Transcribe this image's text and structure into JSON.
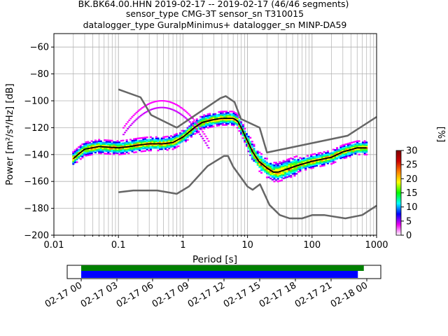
{
  "title_lines": [
    "BK.BK64.00.HHN   2019-02-17 -- 2019-02-17  (46/46 segments)",
    "sensor_type CMG-3T sensor_sn T310015",
    "datalogger_type GuralpMinimus+ datalogger_sn MINP-DA59"
  ],
  "chart_data": {
    "type": "heatmap",
    "xlabel": "Period [s]",
    "ylabel": "Power [m²/s⁴/Hz] [dB]",
    "xscale": "log",
    "xlim": [
      0.01,
      1000
    ],
    "ylim": [
      -200,
      -50
    ],
    "grid": true,
    "x_ticks": [
      0.01,
      0.1,
      1,
      10,
      100,
      1000
    ],
    "x_tick_labels": [
      "0.01",
      "0.1",
      "1",
      "10",
      "100",
      "1000"
    ],
    "y_ticks": [
      -60,
      -80,
      -100,
      -120,
      -140,
      -160,
      -180,
      -200
    ],
    "y_tick_labels": [
      "−60",
      "−80",
      "−100",
      "−120",
      "−140",
      "−160",
      "−180",
      "−200"
    ],
    "series": [
      {
        "role": "new_high_noise_model",
        "color": "#666666",
        "x": [
          0.1,
          0.22,
          0.32,
          0.8,
          3.8,
          4.6,
          6.3,
          7.9,
          15.4,
          20,
          354.8,
          1000
        ],
        "y": [
          -91.5,
          -97.4,
          -110.5,
          -120,
          -98,
          -96.5,
          -101,
          -113.5,
          -120,
          -138.5,
          -126,
          -112
        ]
      },
      {
        "role": "new_low_noise_model",
        "color": "#666666",
        "x": [
          0.1,
          0.17,
          0.4,
          0.8,
          1.24,
          2.4,
          4.3,
          5,
          6,
          10,
          12,
          15.6,
          21.9,
          31.6,
          45,
          70,
          101,
          154,
          328,
          600,
          1000
        ],
        "y": [
          -168,
          -166.7,
          -166.7,
          -169.2,
          -163.7,
          -148.6,
          -141.1,
          -141.1,
          -149,
          -163.8,
          -166.2,
          -162.1,
          -177.5,
          -185,
          -187.5,
          -187.5,
          -185,
          -185,
          -187.5,
          -185,
          -178
        ]
      },
      {
        "role": "mode_psd",
        "color": "#000000",
        "x": [
          0.02,
          0.025,
          0.03,
          0.05,
          0.1,
          0.15,
          0.2,
          0.3,
          0.5,
          0.7,
          1,
          1.5,
          2,
          3,
          4,
          5,
          6,
          7,
          8,
          10,
          12,
          15,
          20,
          25,
          30,
          40,
          60,
          100,
          200,
          300,
          500,
          700
        ],
        "y": [
          -143,
          -139,
          -136,
          -134,
          -135,
          -134,
          -133,
          -132,
          -132,
          -131,
          -127,
          -120,
          -116,
          -114,
          -113,
          -113,
          -113,
          -115,
          -120,
          -130,
          -138,
          -145,
          -150,
          -153,
          -153,
          -151,
          -148,
          -145,
          -142,
          -138,
          -135,
          -135
        ]
      }
    ],
    "colorbar": {
      "label": "[%]",
      "min": 0,
      "max": 30,
      "ticks": [
        0,
        5,
        10,
        15,
        20,
        25,
        30
      ],
      "tick_labels": [
        "0",
        "5",
        "10",
        "15",
        "20",
        "25",
        "30"
      ],
      "colormap": [
        "#ffffff",
        "#ee00ee",
        "#0000ff",
        "#00ffff",
        "#00ff00",
        "#ffff00",
        "#ff7f00",
        "#cc0000",
        "#800000"
      ]
    },
    "timeline": {
      "tick_labels": [
        "02-17 00",
        "02-17 03",
        "02-17 06",
        "02-17 09",
        "02-17 12",
        "02-17 15",
        "02-17 18",
        "02-17 21",
        "02-18 00"
      ],
      "bars": [
        {
          "role": "data_coverage",
          "color": "#008000",
          "start_hour": 0,
          "end_hour": 23.75
        },
        {
          "role": "psd_segments",
          "color": "#0000ff",
          "start_hour": 0,
          "end_hour": 23.25
        }
      ]
    }
  }
}
